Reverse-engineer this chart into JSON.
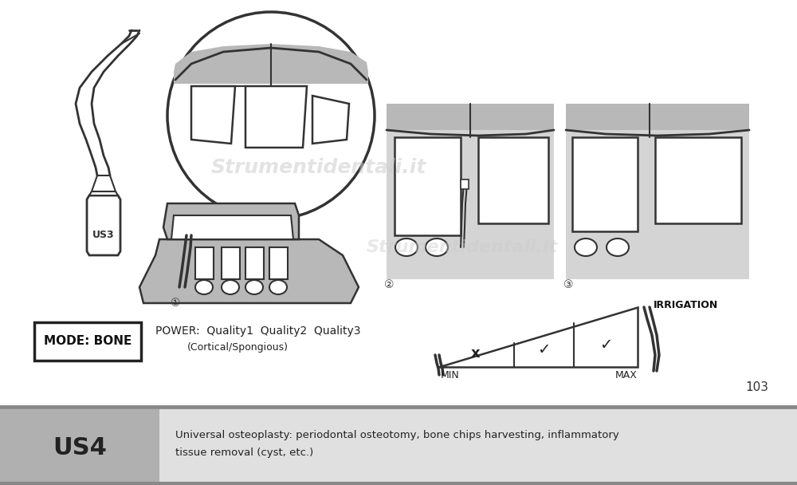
{
  "bg_color": "#ffffff",
  "watermark": "Strumentidentali.it",
  "page_number": "103",
  "instrument_label": "US3",
  "mode_label": "MODE: BONE",
  "power_label": "POWER:  Quality1  Quality2  Quality3",
  "power_sub": "(Cortical/Spongious)",
  "irrigation_label": "IRRIGATION",
  "min_label": "MIN",
  "max_label": "MAX",
  "bottom_code": "US4",
  "bottom_desc_line1": "Universal osteoplasty: periodontal osteotomy, bone chips harvesting, inflammatory",
  "bottom_desc_line2": "tissue removal (cyst, etc.)",
  "bottom_bg": "#b0b0b0",
  "bottom_text_bg": "#e0e0e0",
  "separator_color": "#888888",
  "outline_color": "#333333",
  "gray_fill": "#b8b8b8",
  "panel_gray": "#d4d4d4",
  "light_gray": "#d8d8d8"
}
